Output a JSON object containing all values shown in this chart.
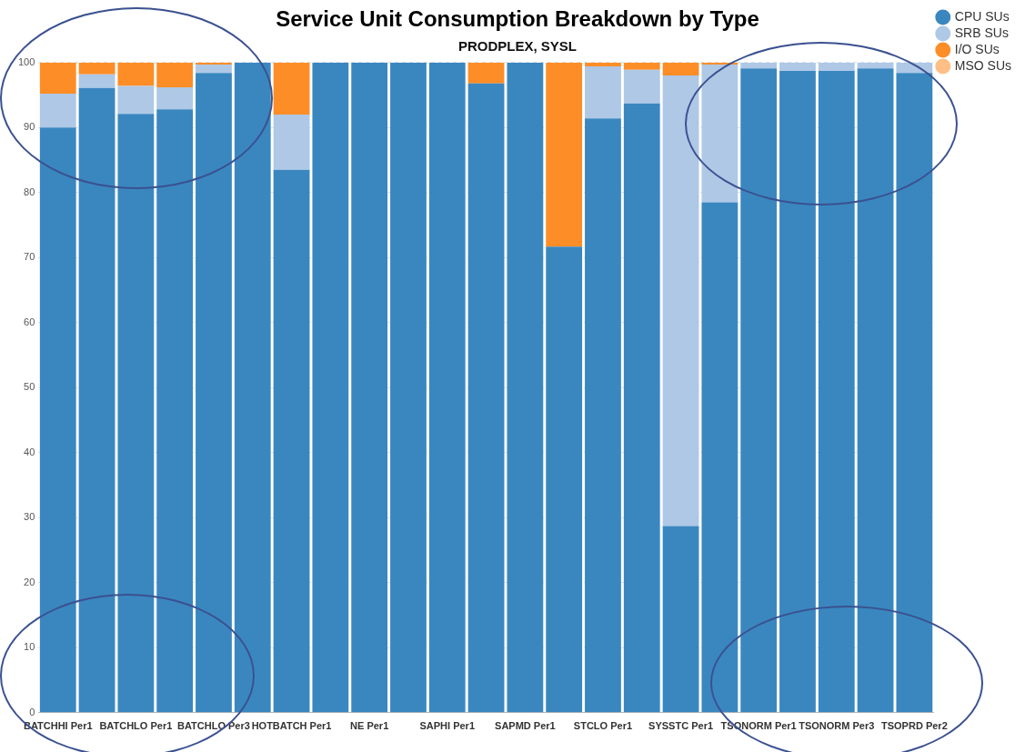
{
  "chart_data": {
    "type": "bar",
    "title": "Service Unit Consumption Breakdown by Type",
    "subtitle": "PRODPLEX, SYSL",
    "categories": [
      "BATCHHI Per1",
      null,
      "BATCHLO Per1",
      null,
      "BATCHLO Per3",
      null,
      "HOTBATCH Per1",
      null,
      "NE Per1",
      null,
      "SAPHI Per1",
      null,
      "SAPMD Per1",
      null,
      "STCLO Per1",
      null,
      "SYSSTC Per1",
      null,
      "TSONORM Per1",
      null,
      "TSONORM Per3",
      null,
      "TSOPRD Per2"
    ],
    "stacked": true,
    "series": [
      {
        "name": "CPU SUs",
        "color": "#3a87c0",
        "values": [
          90,
          96.1,
          92.1,
          92.8,
          98.4,
          100,
          83.5,
          100,
          100,
          100,
          100,
          96.8,
          100,
          71.7,
          91.4,
          93.7,
          28.7,
          78.5,
          99.1,
          98.7,
          98.7,
          99.1,
          98.4
        ]
      },
      {
        "name": "SRB SUs",
        "color": "#aec8e6",
        "values": [
          5.2,
          2.1,
          4.3,
          3.4,
          1.3,
          0,
          8.5,
          0,
          0,
          0,
          0,
          0,
          0,
          0,
          8,
          5.2,
          69.3,
          21.2,
          0.9,
          1.3,
          1.3,
          0.9,
          1.6
        ]
      },
      {
        "name": "I/O SUs",
        "color": "#fd8d27",
        "values": [
          4.8,
          1.8,
          3.6,
          3.8,
          0.3,
          0,
          8,
          0,
          0,
          0,
          0,
          3.2,
          0,
          28.3,
          0.6,
          1.1,
          2,
          0.3,
          0,
          0,
          0,
          0,
          0
        ]
      },
      {
        "name": "MSO SUs",
        "color": "#fdbf86",
        "values": [
          0,
          0,
          0,
          0,
          0,
          0,
          0,
          0,
          0,
          0,
          0,
          0,
          0,
          0,
          0,
          0,
          0,
          0,
          0,
          0,
          0,
          0,
          0
        ]
      }
    ],
    "ylim": [
      0,
      100
    ],
    "yticks": [
      0,
      10,
      20,
      30,
      40,
      50,
      60,
      70,
      80,
      90,
      100
    ],
    "grid": "y",
    "legend": "top right"
  }
}
